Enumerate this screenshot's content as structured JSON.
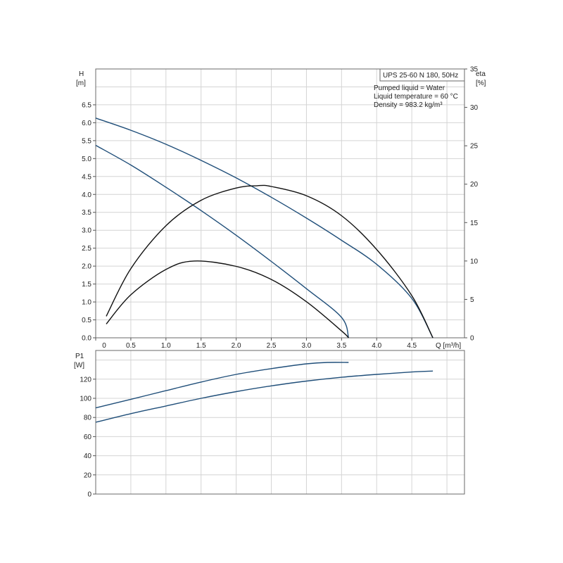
{
  "chart_data": [
    {
      "type": "line",
      "title": "UPS 25-60 N 180, 50Hz",
      "annotations": [
        "Pumped liquid = Water",
        "Liquid temperature = 60 °C",
        "Density = 983.2 kg/m³"
      ],
      "xlabel": "Q [m³/h]",
      "ylabel": "H",
      "ylabel_unit": "[m]",
      "y2label": "eta",
      "y2label_unit": "[%]",
      "xlim": [
        0,
        5.25
      ],
      "ylim": [
        0,
        7.5
      ],
      "y2lim": [
        0,
        35
      ],
      "x_ticks": [
        "0",
        "0.5",
        "1.0",
        "1.5",
        "2.0",
        "2.5",
        "3.0",
        "3.5",
        "4.0",
        "4.5"
      ],
      "y_ticks": [
        "0.0",
        "0.5",
        "1.0",
        "1.5",
        "2.0",
        "2.5",
        "3.0",
        "3.5",
        "4.0",
        "4.5",
        "5.0",
        "5.5",
        "6.0",
        "6.5"
      ],
      "y2_ticks": [
        "0",
        "5",
        "10",
        "15",
        "20",
        "25",
        "30",
        "35"
      ],
      "grid": true,
      "series": [
        {
          "axis": "H",
          "color": "#1f4e79",
          "points": [
            [
              0,
              6.13
            ],
            [
              0.5,
              5.79
            ],
            [
              1.0,
              5.4
            ],
            [
              1.5,
              4.95
            ],
            [
              2.0,
              4.46
            ],
            [
              2.5,
              3.92
            ],
            [
              3.0,
              3.34
            ],
            [
              3.5,
              2.72
            ],
            [
              4.0,
              2.05
            ],
            [
              4.5,
              1.1
            ],
            [
              4.8,
              0.0
            ]
          ]
        },
        {
          "axis": "H",
          "color": "#1f4e79",
          "points": [
            [
              0,
              5.37
            ],
            [
              0.5,
              4.82
            ],
            [
              1.0,
              4.2
            ],
            [
              1.5,
              3.55
            ],
            [
              2.0,
              2.86
            ],
            [
              2.5,
              2.13
            ],
            [
              3.0,
              1.37
            ],
            [
              3.5,
              0.57
            ],
            [
              3.6,
              0.0
            ]
          ]
        },
        {
          "axis": "eta",
          "color": "#111111",
          "points": [
            [
              0.15,
              2.8
            ],
            [
              0.5,
              9.0
            ],
            [
              1.0,
              14.6
            ],
            [
              1.5,
              17.9
            ],
            [
              2.0,
              19.5
            ],
            [
              2.3,
              19.8
            ],
            [
              2.5,
              19.7
            ],
            [
              3.0,
              18.5
            ],
            [
              3.5,
              15.9
            ],
            [
              4.0,
              11.5
            ],
            [
              4.5,
              5.5
            ],
            [
              4.8,
              0.0
            ]
          ]
        },
        {
          "axis": "eta",
          "color": "#111111",
          "points": [
            [
              0.15,
              1.8
            ],
            [
              0.5,
              5.6
            ],
            [
              1.0,
              8.9
            ],
            [
              1.4,
              10.0
            ],
            [
              2.0,
              9.3
            ],
            [
              2.5,
              7.6
            ],
            [
              3.0,
              4.7
            ],
            [
              3.5,
              0.9
            ],
            [
              3.6,
              0.0
            ]
          ]
        }
      ]
    },
    {
      "type": "line",
      "ylabel": "P1",
      "ylabel_unit": "[W]",
      "xlim": [
        0,
        5.25
      ],
      "ylim": [
        0,
        150
      ],
      "y_ticks": [
        "0",
        "20",
        "40",
        "60",
        "80",
        "100",
        "120"
      ],
      "grid": true,
      "series": [
        {
          "color": "#1f4e79",
          "points": [
            [
              0,
              90
            ],
            [
              0.5,
              99
            ],
            [
              1.0,
              108
            ],
            [
              1.5,
              117
            ],
            [
              2.0,
              125
            ],
            [
              2.5,
              131
            ],
            [
              3.0,
              136
            ],
            [
              3.3,
              137.5
            ],
            [
              3.6,
              137.5
            ]
          ]
        },
        {
          "color": "#1f4e79",
          "points": [
            [
              0,
              75
            ],
            [
              0.5,
              84
            ],
            [
              1.0,
              92
            ],
            [
              1.5,
              100
            ],
            [
              2.0,
              107
            ],
            [
              2.5,
              113
            ],
            [
              3.0,
              118
            ],
            [
              3.5,
              122
            ],
            [
              4.0,
              125
            ],
            [
              4.5,
              127.5
            ],
            [
              4.8,
              128.5
            ]
          ]
        }
      ]
    }
  ]
}
